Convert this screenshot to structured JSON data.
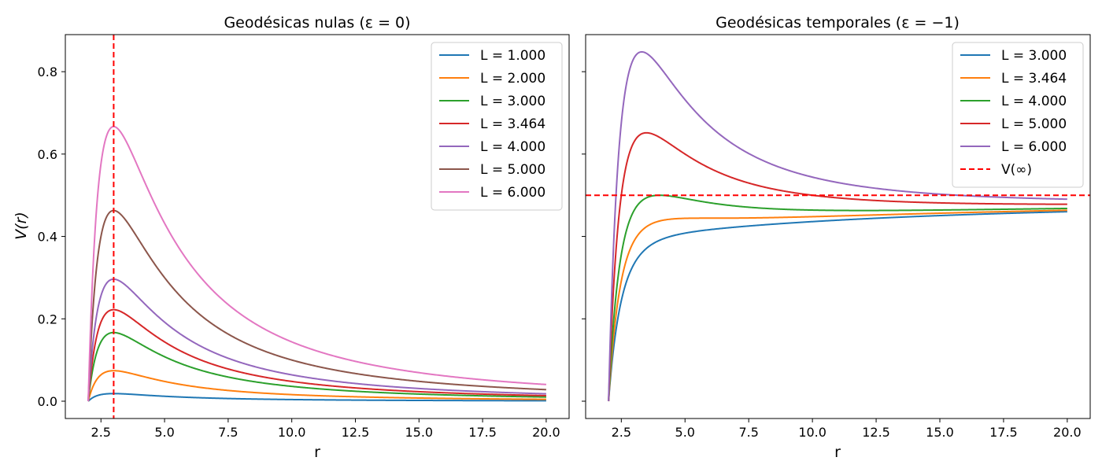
{
  "chart_data": [
    {
      "type": "line",
      "title": "Geodésicas nulas (ε = 0)",
      "xlabel": "r",
      "ylabel": "V(r)",
      "xlim": [
        1.1,
        20.9
      ],
      "ylim": [
        -0.042,
        0.89
      ],
      "x_ticks": [
        2.5,
        5.0,
        7.5,
        10.0,
        12.5,
        15.0,
        17.5,
        20.0
      ],
      "x_tick_labels": [
        "2.5",
        "5.0",
        "7.5",
        "10.0",
        "12.5",
        "15.0",
        "17.5",
        "20.0"
      ],
      "y_ticks": [
        0.0,
        0.2,
        0.4,
        0.6,
        0.8
      ],
      "y_tick_labels": [
        "0.0",
        "0.2",
        "0.4",
        "0.6",
        "0.8"
      ],
      "grid": false,
      "legend_position": "upper right",
      "epsilon": 0,
      "r_range": [
        2.0,
        20.0
      ],
      "series": [
        {
          "name": "L = 1.000",
          "L": 1.0,
          "color": "#1f77b4"
        },
        {
          "name": "L = 2.000",
          "L": 2.0,
          "color": "#ff7f0e"
        },
        {
          "name": "L = 3.000",
          "L": 3.0,
          "color": "#2ca02c"
        },
        {
          "name": "L = 3.464",
          "L": 3.464,
          "color": "#d62728"
        },
        {
          "name": "L = 4.000",
          "L": 4.0,
          "color": "#9467bd"
        },
        {
          "name": "L = 5.000",
          "L": 5.0,
          "color": "#8c564b"
        },
        {
          "name": "L = 6.000",
          "L": 6.0,
          "color": "#e377c2"
        }
      ],
      "reference_line": {
        "orientation": "vertical",
        "value": 3.0,
        "color": "#ff0000",
        "style": "dashed",
        "name": ""
      }
    },
    {
      "type": "line",
      "title": "Geodésicas temporales (ε = −1)",
      "xlabel": "r",
      "ylabel": "",
      "xlim": [
        1.1,
        20.9
      ],
      "ylim": [
        -0.042,
        0.89
      ],
      "x_ticks": [
        2.5,
        5.0,
        7.5,
        10.0,
        12.5,
        15.0,
        17.5,
        20.0
      ],
      "x_tick_labels": [
        "2.5",
        "5.0",
        "7.5",
        "10.0",
        "12.5",
        "15.0",
        "17.5",
        "20.0"
      ],
      "y_ticks": [
        0.0,
        0.2,
        0.4,
        0.6,
        0.8
      ],
      "y_tick_labels": [],
      "grid": false,
      "legend_position": "upper right",
      "epsilon": -1,
      "r_range": [
        2.0,
        20.0
      ],
      "series": [
        {
          "name": "L = 3.000",
          "L": 3.0,
          "color": "#1f77b4"
        },
        {
          "name": "L = 3.464",
          "L": 3.464,
          "color": "#ff7f0e"
        },
        {
          "name": "L = 4.000",
          "L": 4.0,
          "color": "#2ca02c"
        },
        {
          "name": "L = 5.000",
          "L": 5.0,
          "color": "#d62728"
        },
        {
          "name": "L = 6.000",
          "L": 6.0,
          "color": "#9467bd"
        }
      ],
      "reference_line": {
        "orientation": "horizontal",
        "value": 0.5,
        "color": "#ff0000",
        "style": "dashed",
        "name": "V(∞)"
      }
    }
  ]
}
